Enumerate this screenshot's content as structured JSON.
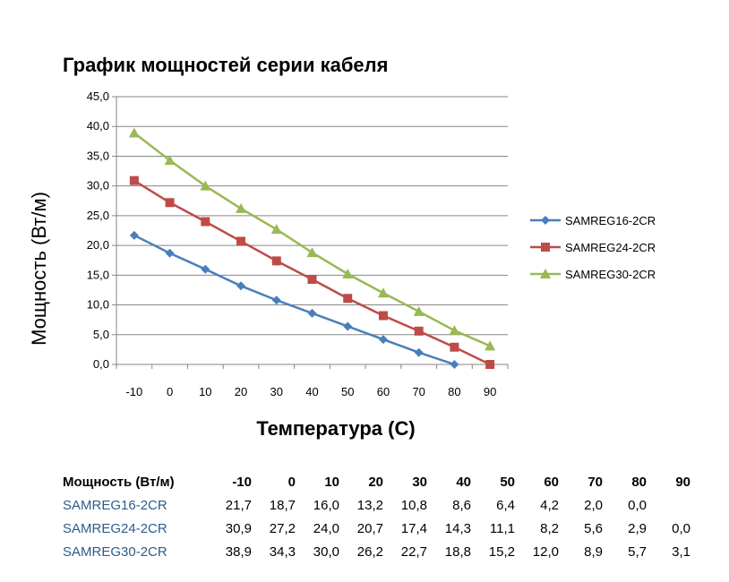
{
  "chart_data": {
    "type": "line",
    "title": "График мощностей серии кабеля",
    "xlabel": "Температура (С)",
    "ylabel": "Мощность (Вт/м)",
    "categories": [
      "-10",
      "0",
      "10",
      "20",
      "30",
      "40",
      "50",
      "60",
      "70",
      "80",
      "90"
    ],
    "ylim": [
      0,
      45
    ],
    "yticks": [
      "0,0",
      "5,0",
      "10,0",
      "15,0",
      "20,0",
      "25,0",
      "30,0",
      "35,0",
      "40,0",
      "45,0"
    ],
    "grid": true,
    "legend_position": "right",
    "series": [
      {
        "name": "SAMREG16-2CR",
        "color": "#4a7ebb",
        "marker": "diamond",
        "values": [
          21.7,
          18.7,
          16.0,
          13.2,
          10.8,
          8.6,
          6.4,
          4.2,
          2.0,
          0.0,
          null
        ]
      },
      {
        "name": "SAMREG24-2CR",
        "color": "#be4b48",
        "marker": "square",
        "values": [
          30.9,
          27.2,
          24.0,
          20.7,
          17.4,
          14.3,
          11.1,
          8.2,
          5.6,
          2.9,
          0.0
        ]
      },
      {
        "name": "SAMREG30-2CR",
        "color": "#98b954",
        "marker": "triangle",
        "values": [
          38.9,
          34.3,
          30.0,
          26.2,
          22.7,
          18.8,
          15.2,
          12.0,
          8.9,
          5.7,
          3.1
        ]
      }
    ]
  },
  "table": {
    "header_label": "Мощность (Вт/м)",
    "columns": [
      "-10",
      "0",
      "10",
      "20",
      "30",
      "40",
      "50",
      "60",
      "70",
      "80",
      "90"
    ],
    "rows": [
      {
        "label": "SAMREG16-2CR",
        "cells": [
          "21,7",
          "18,7",
          "16,0",
          "13,2",
          "10,8",
          "8,6",
          "6,4",
          "4,2",
          "2,0",
          "0,0",
          ""
        ]
      },
      {
        "label": "SAMREG24-2CR",
        "cells": [
          "30,9",
          "27,2",
          "24,0",
          "20,7",
          "17,4",
          "14,3",
          "11,1",
          "8,2",
          "5,6",
          "2,9",
          "0,0"
        ]
      },
      {
        "label": "SAMREG30-2CR",
        "cells": [
          "38,9",
          "34,3",
          "30,0",
          "26,2",
          "22,7",
          "18,8",
          "15,2",
          "12,0",
          "8,9",
          "5,7",
          "3,1"
        ]
      }
    ]
  }
}
